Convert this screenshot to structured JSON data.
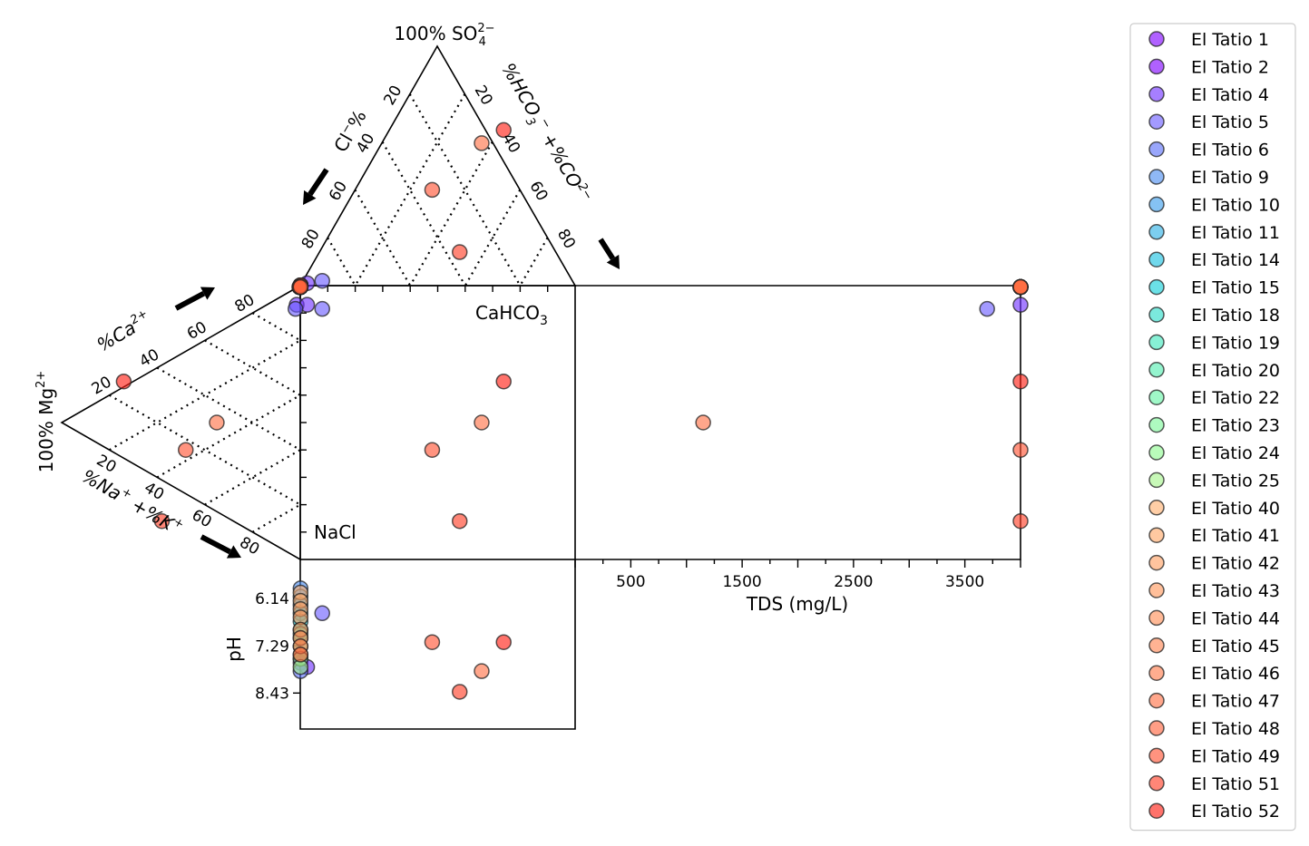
{
  "chart_data": {
    "type": "scatter",
    "variant": "durov",
    "labels": {
      "top_apex": "100% SO",
      "top_apex_sup": "2−",
      "top_apex_sub": "4",
      "cl_axis": "Cl",
      "cl_axis_sup": "−",
      "cl_axis_tail": "%",
      "hco3_axis": "%HCO",
      "hco3_sub": "3",
      "hco3_sup": "−",
      "hco3_mid": " +%CO",
      "co3_sup": "2−",
      "left_apex": "100% Mg",
      "left_apex_sup": "2+",
      "ca_axis": "%Ca",
      "ca_sup": "2+",
      "nak_axis": "%Na",
      "na_sup": "+",
      "nak_mid": " +%K",
      "k_sup": "+",
      "cahco3": "CaHCO",
      "cahco3_sub": "3",
      "nacl": "NaCl",
      "tds_label": "TDS (mg/L)",
      "ph_label": "pH"
    },
    "ternary_ticks": [
      "20",
      "40",
      "60",
      "80"
    ],
    "tds_ticks": [
      "500",
      "1500",
      "2500",
      "3500"
    ],
    "ph_ticks": [
      "6.14",
      "7.29",
      "8.43"
    ],
    "legend_position": "outside right",
    "grid": "dotted",
    "series": [
      {
        "name": "El Tatio 1",
        "color": "#8000ff",
        "anion_row": [
          0.1,
          99.9
        ],
        "cation_row": [
          0.3,
          0.5
        ],
        "tds": 4000,
        "ph": 7.6
      },
      {
        "name": "El Tatio 2",
        "color": "#8000ff",
        "anion_row": [
          0.1,
          99.9
        ],
        "cation_row": [
          0.3,
          0.5
        ],
        "tds": 4000,
        "ph": 7.7
      },
      {
        "name": "El Tatio 4",
        "color": "#7030ff",
        "anion_row": [
          2.5,
          99.0
        ],
        "cation_row": [
          1.5,
          7.0
        ],
        "tds": 4000,
        "ph": 7.8
      },
      {
        "name": "El Tatio 5",
        "color": "#6a5cff",
        "anion_row": [
          8.0,
          98.0
        ],
        "cation_row": [
          2.0,
          8.5
        ],
        "tds": 3700,
        "ph": 6.5
      },
      {
        "name": "El Tatio 6",
        "color": "#5a70f8",
        "anion_row": [
          0.1,
          99.9
        ],
        "cation_row": [
          0.3,
          0.5
        ],
        "tds": 4000,
        "ph": 7.9
      },
      {
        "name": "El Tatio 9",
        "color": "#4a8cf0",
        "anion_row": [
          0.1,
          99.9
        ],
        "cation_row": [
          0.3,
          0.5
        ],
        "tds": 4000,
        "ph": 5.9
      },
      {
        "name": "El Tatio 10",
        "color": "#3a9ceb",
        "anion_row": [
          0.1,
          99.9
        ],
        "cation_row": [
          0.3,
          0.5
        ],
        "tds": 4000,
        "ph": 6.1
      },
      {
        "name": "El Tatio 11",
        "color": "#2cb0e5",
        "anion_row": [
          0.1,
          99.9
        ],
        "cation_row": [
          0.3,
          0.5
        ],
        "tds": 4000,
        "ph": 6.3
      },
      {
        "name": "El Tatio 14",
        "color": "#18c0e0",
        "anion_row": [
          0.1,
          99.9
        ],
        "cation_row": [
          0.3,
          0.5
        ],
        "tds": 4000,
        "ph": 6.5
      },
      {
        "name": "El Tatio 15",
        "color": "#10cfd8",
        "anion_row": [
          0.1,
          99.9
        ],
        "cation_row": [
          0.3,
          0.5
        ],
        "tds": 4000,
        "ph": 6.7
      },
      {
        "name": "El Tatio 18",
        "color": "#2adcc8",
        "anion_row": [
          0.1,
          99.9
        ],
        "cation_row": [
          0.3,
          0.5
        ],
        "tds": 4000,
        "ph": 6.9
      },
      {
        "name": "El Tatio 19",
        "color": "#3ee6bc",
        "anion_row": [
          0.1,
          99.9
        ],
        "cation_row": [
          0.3,
          0.5
        ],
        "tds": 4000,
        "ph": 7.0
      },
      {
        "name": "El Tatio 20",
        "color": "#52eeb0",
        "anion_row": [
          0.1,
          99.9
        ],
        "cation_row": [
          0.3,
          0.5
        ],
        "tds": 4000,
        "ph": 7.1
      },
      {
        "name": "El Tatio 22",
        "color": "#66f4a6",
        "anion_row": [
          0.1,
          99.9
        ],
        "cation_row": [
          0.3,
          0.5
        ],
        "tds": 4000,
        "ph": 7.3
      },
      {
        "name": "El Tatio 23",
        "color": "#7cf89a",
        "anion_row": [
          0.1,
          99.9
        ],
        "cation_row": [
          0.3,
          0.5
        ],
        "tds": 4000,
        "ph": 7.5
      },
      {
        "name": "El Tatio 24",
        "color": "#8efa90",
        "anion_row": [
          0.1,
          99.9
        ],
        "cation_row": [
          0.3,
          0.5
        ],
        "tds": 4000,
        "ph": 7.6
      },
      {
        "name": "El Tatio 25",
        "color": "#a4f48a",
        "anion_row": [
          0.1,
          99.9
        ],
        "cation_row": [
          0.3,
          0.5
        ],
        "tds": 4000,
        "ph": 7.8
      },
      {
        "name": "El Tatio 40",
        "color": "#ffb070",
        "anion_row": [
          0.1,
          99.9
        ],
        "cation_row": [
          0.3,
          0.5
        ],
        "tds": 4000,
        "ph": 6.0
      },
      {
        "name": "El Tatio 41",
        "color": "#ffa868",
        "anion_row": [
          0.1,
          99.9
        ],
        "cation_row": [
          0.3,
          0.5
        ],
        "tds": 4000,
        "ph": 6.2
      },
      {
        "name": "El Tatio 42",
        "color": "#ffa062",
        "anion_row": [
          0.1,
          99.9
        ],
        "cation_row": [
          0.3,
          0.5
        ],
        "tds": 4000,
        "ph": 6.4
      },
      {
        "name": "El Tatio 43",
        "color": "#ff985c",
        "anion_row": [
          0.1,
          99.9
        ],
        "cation_row": [
          0.3,
          0.5
        ],
        "tds": 4000,
        "ph": 6.6
      },
      {
        "name": "El Tatio 44",
        "color": "#ff8e56",
        "anion_row": [
          0.1,
          99.9
        ],
        "cation_row": [
          0.3,
          0.5
        ],
        "tds": 4000,
        "ph": 6.9
      },
      {
        "name": "El Tatio 45",
        "color": "#ff8450",
        "anion_row": [
          0.1,
          99.9
        ],
        "cation_row": [
          0.3,
          0.5
        ],
        "tds": 4000,
        "ph": 7.1
      },
      {
        "name": "El Tatio 46",
        "color": "#ff7a4a",
        "anion_row": [
          0.1,
          99.9
        ],
        "cation_row": [
          0.3,
          0.5
        ],
        "tds": 4000,
        "ph": 7.3
      },
      {
        "name": "El Tatio 47",
        "color": "#ff7044",
        "anion_row": [
          66.0,
          40.5
        ],
        "cation_row": [
          35.0,
          50.0
        ],
        "tds": 1150,
        "ph": 7.9
      },
      {
        "name": "El Tatio 48",
        "color": "#ff623c",
        "anion_row": [
          0.1,
          99.9
        ],
        "cation_row": [
          0.3,
          0.5
        ],
        "tds": 4000,
        "ph": 7.5
      },
      {
        "name": "El Tatio 49",
        "color": "#ff5030",
        "anion_row": [
          48.0,
          60.0
        ],
        "cation_row": [
          48.0,
          60.0
        ],
        "tds": 4000,
        "ph": 7.2
      },
      {
        "name": "El Tatio 51",
        "color": "#ff3c24",
        "anion_row": [
          58.0,
          86.0
        ],
        "cation_row": [
          58.0,
          86.0
        ],
        "tds": 4000,
        "ph": 8.4
      },
      {
        "name": "El Tatio 52",
        "color": "#ff1c10",
        "anion_row": [
          74.0,
          35.0
        ],
        "cation_row": [
          74.0,
          35.0
        ],
        "tds": 4000,
        "ph": 7.2
      }
    ]
  }
}
